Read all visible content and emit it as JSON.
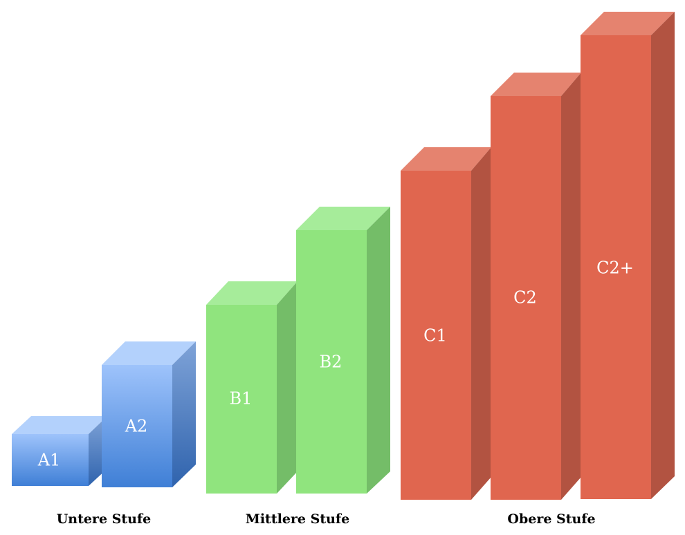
{
  "blocks": [
    {
      "label": "A1"
    },
    {
      "label": "A2"
    },
    {
      "label": "B1"
    },
    {
      "label": "B2"
    },
    {
      "label": "C1"
    },
    {
      "label": "C2"
    },
    {
      "label": "C2+"
    }
  ],
  "groups": [
    {
      "label": "Untere Stufe"
    },
    {
      "label": "Mittlere Stufe"
    },
    {
      "label": "Obere Stufe"
    }
  ]
}
